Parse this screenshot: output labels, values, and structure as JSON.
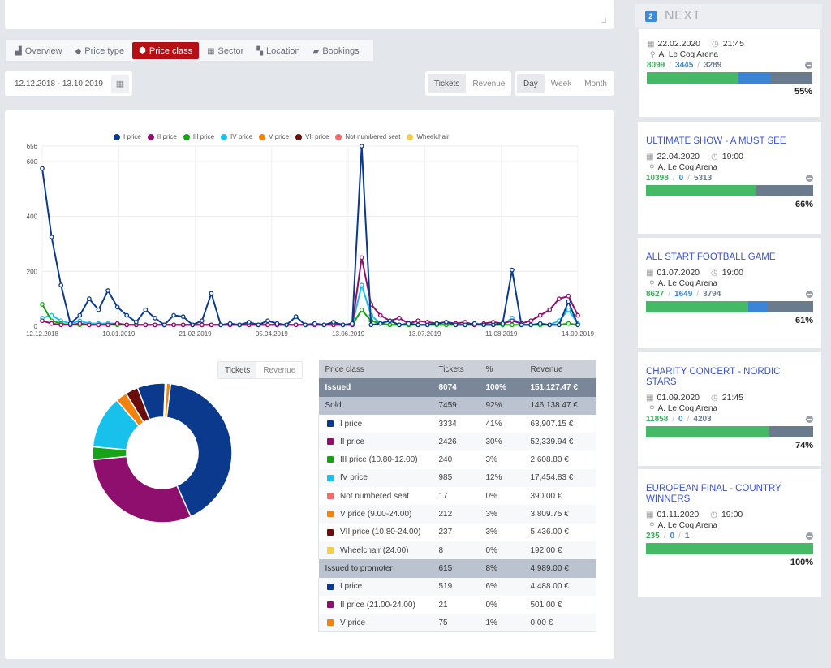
{
  "tabs": [
    {
      "label": "Overview",
      "icon": "area-chart-icon"
    },
    {
      "label": "Price type",
      "icon": "tag-icon"
    },
    {
      "label": "Price class",
      "icon": "cube-icon",
      "active": true
    },
    {
      "label": "Sector",
      "icon": "grid-icon"
    },
    {
      "label": "Location",
      "icon": "map-icon"
    },
    {
      "label": "Bookings",
      "icon": "book-icon"
    }
  ],
  "date_range": "12.12.2018 - 13.10.2019",
  "metric_toggle": {
    "tickets": "Tickets",
    "revenue": "Revenue"
  },
  "period_toggle": {
    "day": "Day",
    "week": "Week",
    "month": "Month"
  },
  "legend": [
    {
      "name": "I price",
      "color": "#0b3a8c"
    },
    {
      "name": "II price",
      "color": "#8e0f6e"
    },
    {
      "name": "III price",
      "color": "#17a317"
    },
    {
      "name": "IV price",
      "color": "#18c0ec"
    },
    {
      "name": "V price",
      "color": "#f2820e"
    },
    {
      "name": "VII price",
      "color": "#6a0d0d"
    },
    {
      "name": "Not numbered seat",
      "color": "#f26c6c"
    },
    {
      "name": "Wheelchair",
      "color": "#f5cf48"
    }
  ],
  "chart_data": {
    "type": "line",
    "x_ticks": [
      "12.12.2018",
      "10.01.2019",
      "21.02.2019",
      "05.04.2019",
      "13.06.2019",
      "13.07.2019",
      "11.08.2019",
      "14.09.2019"
    ],
    "y_ticks": [
      "0",
      "200",
      "400",
      "600",
      "656"
    ],
    "ylim": [
      0,
      656
    ],
    "series": [
      {
        "name": "I price",
        "values": [
          575,
          325,
          150,
          10,
          40,
          100,
          60,
          130,
          70,
          40,
          15,
          60,
          30,
          5,
          40,
          35,
          5,
          20,
          120,
          5,
          10,
          5,
          15,
          5,
          20,
          10,
          5,
          35,
          5,
          10,
          5,
          15,
          5,
          10,
          656,
          5,
          10,
          20,
          5,
          10,
          5,
          5,
          10,
          15,
          5,
          5,
          10,
          5,
          5,
          10,
          205,
          5,
          5,
          10,
          5,
          5,
          90,
          5
        ]
      },
      {
        "name": "II price",
        "values": [
          20,
          10,
          5,
          5,
          10,
          5,
          5,
          5,
          10,
          5,
          5,
          5,
          5,
          5,
          5,
          5,
          5,
          5,
          5,
          5,
          5,
          5,
          5,
          5,
          5,
          5,
          5,
          5,
          5,
          5,
          5,
          5,
          5,
          5,
          250,
          80,
          40,
          20,
          30,
          10,
          20,
          15,
          10,
          15,
          10,
          15,
          5,
          10,
          15,
          10,
          20,
          10,
          20,
          40,
          60,
          100,
          110,
          40
        ]
      },
      {
        "name": "III price",
        "values": [
          80,
          20,
          10,
          5,
          5,
          5,
          5,
          5,
          5,
          5,
          5,
          5,
          5,
          5,
          5,
          5,
          5,
          5,
          5,
          5,
          5,
          5,
          5,
          5,
          5,
          5,
          5,
          5,
          5,
          5,
          5,
          5,
          5,
          5,
          60,
          20,
          10,
          5,
          5,
          5,
          5,
          5,
          5,
          5,
          5,
          5,
          5,
          5,
          5,
          5,
          5,
          5,
          5,
          5,
          5,
          5,
          10,
          5
        ]
      },
      {
        "name": "IV price",
        "values": [
          30,
          40,
          20,
          10,
          20,
          10,
          10,
          10,
          10,
          5,
          5,
          5,
          5,
          5,
          5,
          5,
          5,
          5,
          5,
          5,
          5,
          5,
          5,
          5,
          5,
          5,
          5,
          5,
          5,
          5,
          5,
          5,
          5,
          5,
          150,
          40,
          10,
          5,
          5,
          5,
          5,
          5,
          5,
          5,
          5,
          5,
          5,
          5,
          5,
          5,
          30,
          5,
          5,
          5,
          5,
          20,
          60,
          10
        ]
      }
    ],
    "xlabel": "",
    "ylabel": ""
  },
  "donut": {
    "segments": [
      {
        "name": "I price",
        "value": 3334,
        "color": "#0b3a8c"
      },
      {
        "name": "II price",
        "value": 2426,
        "color": "#8e0f6e"
      },
      {
        "name": "III price",
        "value": 240,
        "color": "#17a317"
      },
      {
        "name": "IV price",
        "value": 985,
        "color": "#18c0ec"
      },
      {
        "name": "V price",
        "value": 212,
        "color": "#f2820e"
      },
      {
        "name": "VII price",
        "value": 237,
        "color": "#6a0d0d"
      },
      {
        "name": "I price (promoter)",
        "value": 519,
        "color": "#0b3a8c"
      },
      {
        "name": "Not numbered seat",
        "value": 17,
        "color": "#f26c6c"
      },
      {
        "name": "Wheelchair",
        "value": 8,
        "color": "#f5cf48"
      },
      {
        "name": "V price (promoter)",
        "value": 75,
        "color": "#f2820e"
      }
    ]
  },
  "table": {
    "headers": [
      "Price class",
      "Tickets",
      "%",
      "Revenue"
    ],
    "issued": {
      "label": "Issued",
      "tickets": "8074",
      "pct": "100%",
      "revenue": "151,127.47 €"
    },
    "sold": {
      "label": "Sold",
      "tickets": "7459",
      "pct": "92%",
      "revenue": "146,138.47 €"
    },
    "sold_items": [
      {
        "label": "I price",
        "color": "#0b3a8c",
        "tickets": "3334",
        "pct": "41%",
        "revenue": "63,907.15 €"
      },
      {
        "label": "II price",
        "color": "#8e0f6e",
        "tickets": "2426",
        "pct": "30%",
        "revenue": "52,339.94 €"
      },
      {
        "label": "III price (10.80-12.00)",
        "color": "#17a317",
        "tickets": "240",
        "pct": "3%",
        "revenue": "2,608.80 €"
      },
      {
        "label": "IV price",
        "color": "#18c0ec",
        "tickets": "985",
        "pct": "12%",
        "revenue": "17,454.83 €"
      },
      {
        "label": "Not numbered seat",
        "color": "#f26c6c",
        "tickets": "17",
        "pct": "0%",
        "revenue": "390.00 €"
      },
      {
        "label": "V price (9.00-24.00)",
        "color": "#f2820e",
        "tickets": "212",
        "pct": "3%",
        "revenue": "3,809.75 €"
      },
      {
        "label": "VII price (10.80-24.00)",
        "color": "#6a0d0d",
        "tickets": "237",
        "pct": "3%",
        "revenue": "5,436.00 €"
      },
      {
        "label": "Wheelchair (24.00)",
        "color": "#f5cf48",
        "tickets": "8",
        "pct": "0%",
        "revenue": "192.00 €"
      }
    ],
    "promoter": {
      "label": "Issued to promoter",
      "tickets": "615",
      "pct": "8%",
      "revenue": "4,989.00 €"
    },
    "promoter_items": [
      {
        "label": "I price",
        "color": "#0b3a8c",
        "tickets": "519",
        "pct": "6%",
        "revenue": "4,488.00 €"
      },
      {
        "label": "II price (21.00-24.00)",
        "color": "#8e0f6e",
        "tickets": "21",
        "pct": "0%",
        "revenue": "501.00 €"
      },
      {
        "label": "V price",
        "color": "#f2820e",
        "tickets": "75",
        "pct": "1%",
        "revenue": "0.00 €"
      }
    ]
  },
  "sidebar": {
    "badge": "2",
    "heading": "NEXT",
    "events": [
      {
        "title": "",
        "date": "22.02.2020",
        "time": "21:45",
        "venue": "A. Le Coq Arena",
        "n1": "8099",
        "n2": "3445",
        "n3": "3289",
        "fill": [
          55,
          20,
          25
        ],
        "pct": "55%"
      },
      {
        "title": "ULTIMATE SHOW - A MUST SEE",
        "date": "22.04.2020",
        "time": "19:00",
        "venue": "A. Le Coq Arena",
        "n1": "10398",
        "n2": "0",
        "n3": "5313",
        "fill": [
          66,
          0,
          34
        ],
        "pct": "66%"
      },
      {
        "title": "ALL START FOOTBALL GAME",
        "date": "01.07.2020",
        "time": "19:00",
        "venue": "A. Le Coq Arena",
        "n1": "8627",
        "n2": "1649",
        "n3": "3794",
        "fill": [
          61,
          12,
          27
        ],
        "pct": "61%"
      },
      {
        "title": "CHARITY CONCERT - NORDIC STARS",
        "date": "01.09.2020",
        "time": "21:45",
        "venue": "A. Le Coq Arena",
        "n1": "11858",
        "n2": "0",
        "n3": "4203",
        "fill": [
          74,
          0,
          26
        ],
        "pct": "74%"
      },
      {
        "title": "EUROPEAN FINAL - COUNTRY WINNERS",
        "date": "01.11.2020",
        "time": "19:00",
        "venue": "A. Le Coq Arena",
        "n1": "235",
        "n2": "0",
        "n3": "1",
        "fill": [
          100,
          0,
          0
        ],
        "pct": "100%"
      }
    ]
  }
}
